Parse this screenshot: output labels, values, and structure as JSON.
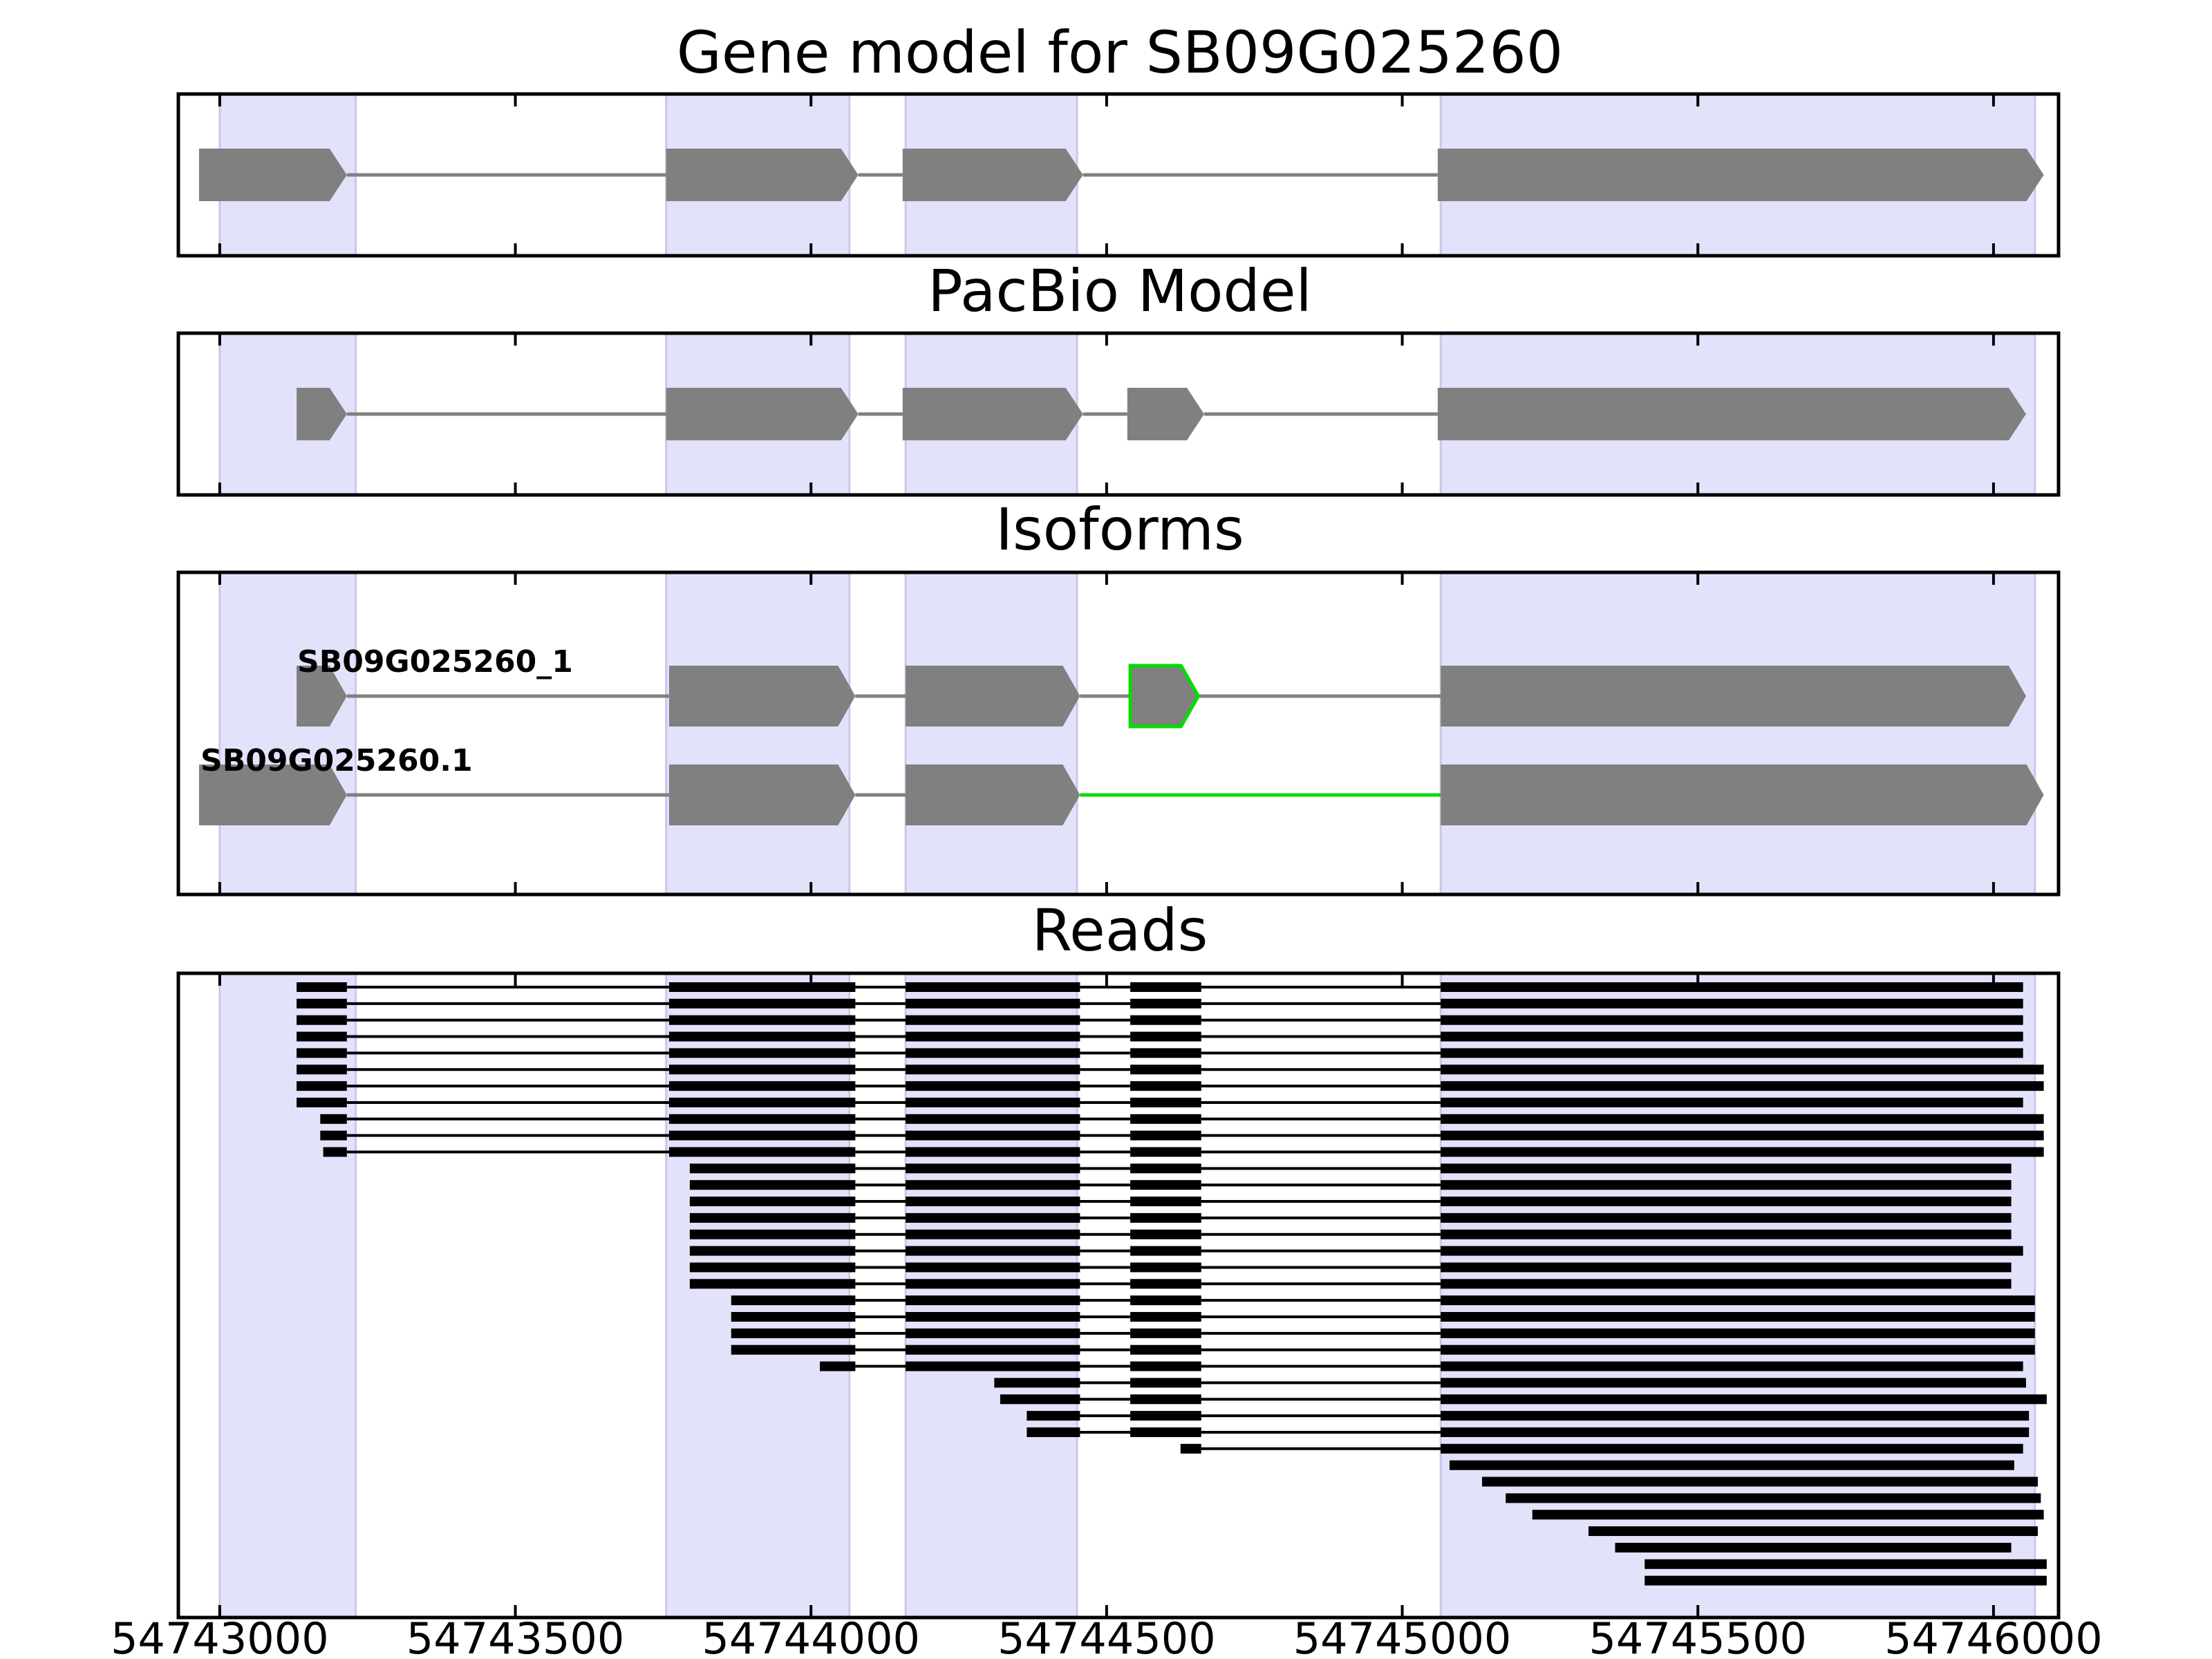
{
  "chart_data": {
    "type": "gene-track",
    "x_range": [
      54742930,
      54746110
    ],
    "x_ticks": [
      54743000,
      54743500,
      54744000,
      54744500,
      54745000,
      54745500,
      54746000
    ],
    "x_tick_labels": [
      "54743000",
      "54743500",
      "54744000",
      "54744500",
      "54745000",
      "54745500",
      "54746000"
    ],
    "colors": {
      "exon_region": "#e2e2fb",
      "exon_fill": "#808080",
      "intron_line": "#808080",
      "highlight": "#00dd00",
      "read_color": "#000000",
      "frame": "#000000"
    },
    "exon_regions": [
      [
        54743000,
        54743230
      ],
      [
        54743755,
        54744065
      ],
      [
        54744160,
        54744450
      ],
      [
        54745065,
        54746070
      ]
    ],
    "panels": [
      {
        "id": "gene-model",
        "title": "Gene model for SB09G025260",
        "rows": [
          {
            "exons": [
              [
                54742965,
                54743215
              ],
              [
                54743755,
                54744080
              ],
              [
                54744155,
                54744460
              ],
              [
                54745060,
                54746085
              ]
            ]
          }
        ]
      },
      {
        "id": "pacbio-model",
        "title": "PacBio Model",
        "rows": [
          {
            "exons": [
              [
                54743130,
                54743215
              ],
              [
                54743755,
                54744080
              ],
              [
                54744155,
                54744460
              ],
              [
                54744535,
                54744665
              ],
              [
                54745060,
                54746055
              ]
            ]
          }
        ]
      },
      {
        "id": "isoforms",
        "title": "Isoforms",
        "rows": [
          {
            "label": "SB09G025260_1",
            "exons": [
              [
                54743130,
                54743215
              ],
              [
                54743760,
                54744075
              ],
              [
                54744160,
                54744455
              ],
              [
                54744540,
                54744655
              ],
              [
                54745065,
                54746055
              ]
            ],
            "highlight_exons": [
              3
            ]
          },
          {
            "label": "SB09G025260.1",
            "exons": [
              [
                54742965,
                54743215
              ],
              [
                54743760,
                54744075
              ],
              [
                54744160,
                54744455
              ],
              [
                54745065,
                54746085
              ]
            ],
            "highlight_introns": [
              2
            ]
          }
        ]
      },
      {
        "id": "reads",
        "title": "Reads",
        "reads": [
          [
            [
              54743130,
              54743215
            ],
            [
              54743760,
              54744075
            ],
            [
              54744160,
              54744455
            ],
            [
              54744540,
              54744660
            ],
            [
              54745065,
              54746050
            ]
          ],
          [
            [
              54743130,
              54743215
            ],
            [
              54743760,
              54744075
            ],
            [
              54744160,
              54744455
            ],
            [
              54744540,
              54744660
            ],
            [
              54745065,
              54746050
            ]
          ],
          [
            [
              54743130,
              54743215
            ],
            [
              54743760,
              54744075
            ],
            [
              54744160,
              54744455
            ],
            [
              54744540,
              54744660
            ],
            [
              54745065,
              54746050
            ]
          ],
          [
            [
              54743130,
              54743215
            ],
            [
              54743760,
              54744075
            ],
            [
              54744160,
              54744455
            ],
            [
              54744540,
              54744660
            ],
            [
              54745065,
              54746050
            ]
          ],
          [
            [
              54743130,
              54743215
            ],
            [
              54743760,
              54744075
            ],
            [
              54744160,
              54744455
            ],
            [
              54744540,
              54744660
            ],
            [
              54745065,
              54746050
            ]
          ],
          [
            [
              54743130,
              54743215
            ],
            [
              54743760,
              54744075
            ],
            [
              54744160,
              54744455
            ],
            [
              54744540,
              54744660
            ],
            [
              54745065,
              54746085
            ]
          ],
          [
            [
              54743130,
              54743215
            ],
            [
              54743760,
              54744075
            ],
            [
              54744160,
              54744455
            ],
            [
              54744540,
              54744660
            ],
            [
              54745065,
              54746085
            ]
          ],
          [
            [
              54743130,
              54743215
            ],
            [
              54743760,
              54744075
            ],
            [
              54744160,
              54744455
            ],
            [
              54744540,
              54744660
            ],
            [
              54745065,
              54746050
            ]
          ],
          [
            [
              54743170,
              54743215
            ],
            [
              54743760,
              54744075
            ],
            [
              54744160,
              54744455
            ],
            [
              54744540,
              54744660
            ],
            [
              54745065,
              54746085
            ]
          ],
          [
            [
              54743170,
              54743215
            ],
            [
              54743760,
              54744075
            ],
            [
              54744160,
              54744455
            ],
            [
              54744540,
              54744660
            ],
            [
              54745065,
              54746085
            ]
          ],
          [
            [
              54743175,
              54743215
            ],
            [
              54743760,
              54744075
            ],
            [
              54744160,
              54744455
            ],
            [
              54744540,
              54744660
            ],
            [
              54745065,
              54746085
            ]
          ],
          [
            [
              54743795,
              54744075
            ],
            [
              54744160,
              54744455
            ],
            [
              54744540,
              54744660
            ],
            [
              54745065,
              54746030
            ]
          ],
          [
            [
              54743795,
              54744075
            ],
            [
              54744160,
              54744455
            ],
            [
              54744540,
              54744660
            ],
            [
              54745065,
              54746030
            ]
          ],
          [
            [
              54743795,
              54744075
            ],
            [
              54744160,
              54744455
            ],
            [
              54744540,
              54744660
            ],
            [
              54745065,
              54746030
            ]
          ],
          [
            [
              54743795,
              54744075
            ],
            [
              54744160,
              54744455
            ],
            [
              54744540,
              54744660
            ],
            [
              54745065,
              54746030
            ]
          ],
          [
            [
              54743795,
              54744075
            ],
            [
              54744160,
              54744455
            ],
            [
              54744540,
              54744660
            ],
            [
              54745065,
              54746030
            ]
          ],
          [
            [
              54743795,
              54744075
            ],
            [
              54744160,
              54744455
            ],
            [
              54744540,
              54744660
            ],
            [
              54745065,
              54746050
            ]
          ],
          [
            [
              54743795,
              54744075
            ],
            [
              54744160,
              54744455
            ],
            [
              54744540,
              54744660
            ],
            [
              54745065,
              54746030
            ]
          ],
          [
            [
              54743795,
              54744075
            ],
            [
              54744160,
              54744455
            ],
            [
              54744540,
              54744660
            ],
            [
              54745065,
              54746030
            ]
          ],
          [
            [
              54743865,
              54744075
            ],
            [
              54744160,
              54744455
            ],
            [
              54744540,
              54744660
            ],
            [
              54745065,
              54746070
            ]
          ],
          [
            [
              54743865,
              54744075
            ],
            [
              54744160,
              54744455
            ],
            [
              54744540,
              54744660
            ],
            [
              54745065,
              54746070
            ]
          ],
          [
            [
              54743865,
              54744075
            ],
            [
              54744160,
              54744455
            ],
            [
              54744540,
              54744660
            ],
            [
              54745065,
              54746070
            ]
          ],
          [
            [
              54743865,
              54744075
            ],
            [
              54744160,
              54744455
            ],
            [
              54744540,
              54744660
            ],
            [
              54745065,
              54746070
            ]
          ],
          [
            [
              54744015,
              54744075
            ],
            [
              54744160,
              54744455
            ],
            [
              54744540,
              54744660
            ],
            [
              54745065,
              54746050
            ]
          ],
          [
            [
              54744310,
              54744455
            ],
            [
              54744540,
              54744660
            ],
            [
              54745065,
              54746055
            ]
          ],
          [
            [
              54744320,
              54744455
            ],
            [
              54744540,
              54744660
            ],
            [
              54745065,
              54746090
            ]
          ],
          [
            [
              54744365,
              54744455
            ],
            [
              54744540,
              54744660
            ],
            [
              54745065,
              54746060
            ]
          ],
          [
            [
              54744365,
              54744455
            ],
            [
              54744540,
              54744660
            ],
            [
              54745065,
              54746060
            ]
          ],
          [
            [
              54744625,
              54744660
            ],
            [
              54745065,
              54746050
            ]
          ],
          [
            [
              54745080,
              54746035
            ]
          ],
          [
            [
              54745135,
              54746075
            ]
          ],
          [
            [
              54745175,
              54746080
            ]
          ],
          [
            [
              54745220,
              54746085
            ]
          ],
          [
            [
              54745315,
              54746075
            ]
          ],
          [
            [
              54745360,
              54746030
            ]
          ],
          [
            [
              54745410,
              54746090
            ]
          ],
          [
            [
              54745410,
              54746090
            ]
          ]
        ]
      }
    ]
  }
}
